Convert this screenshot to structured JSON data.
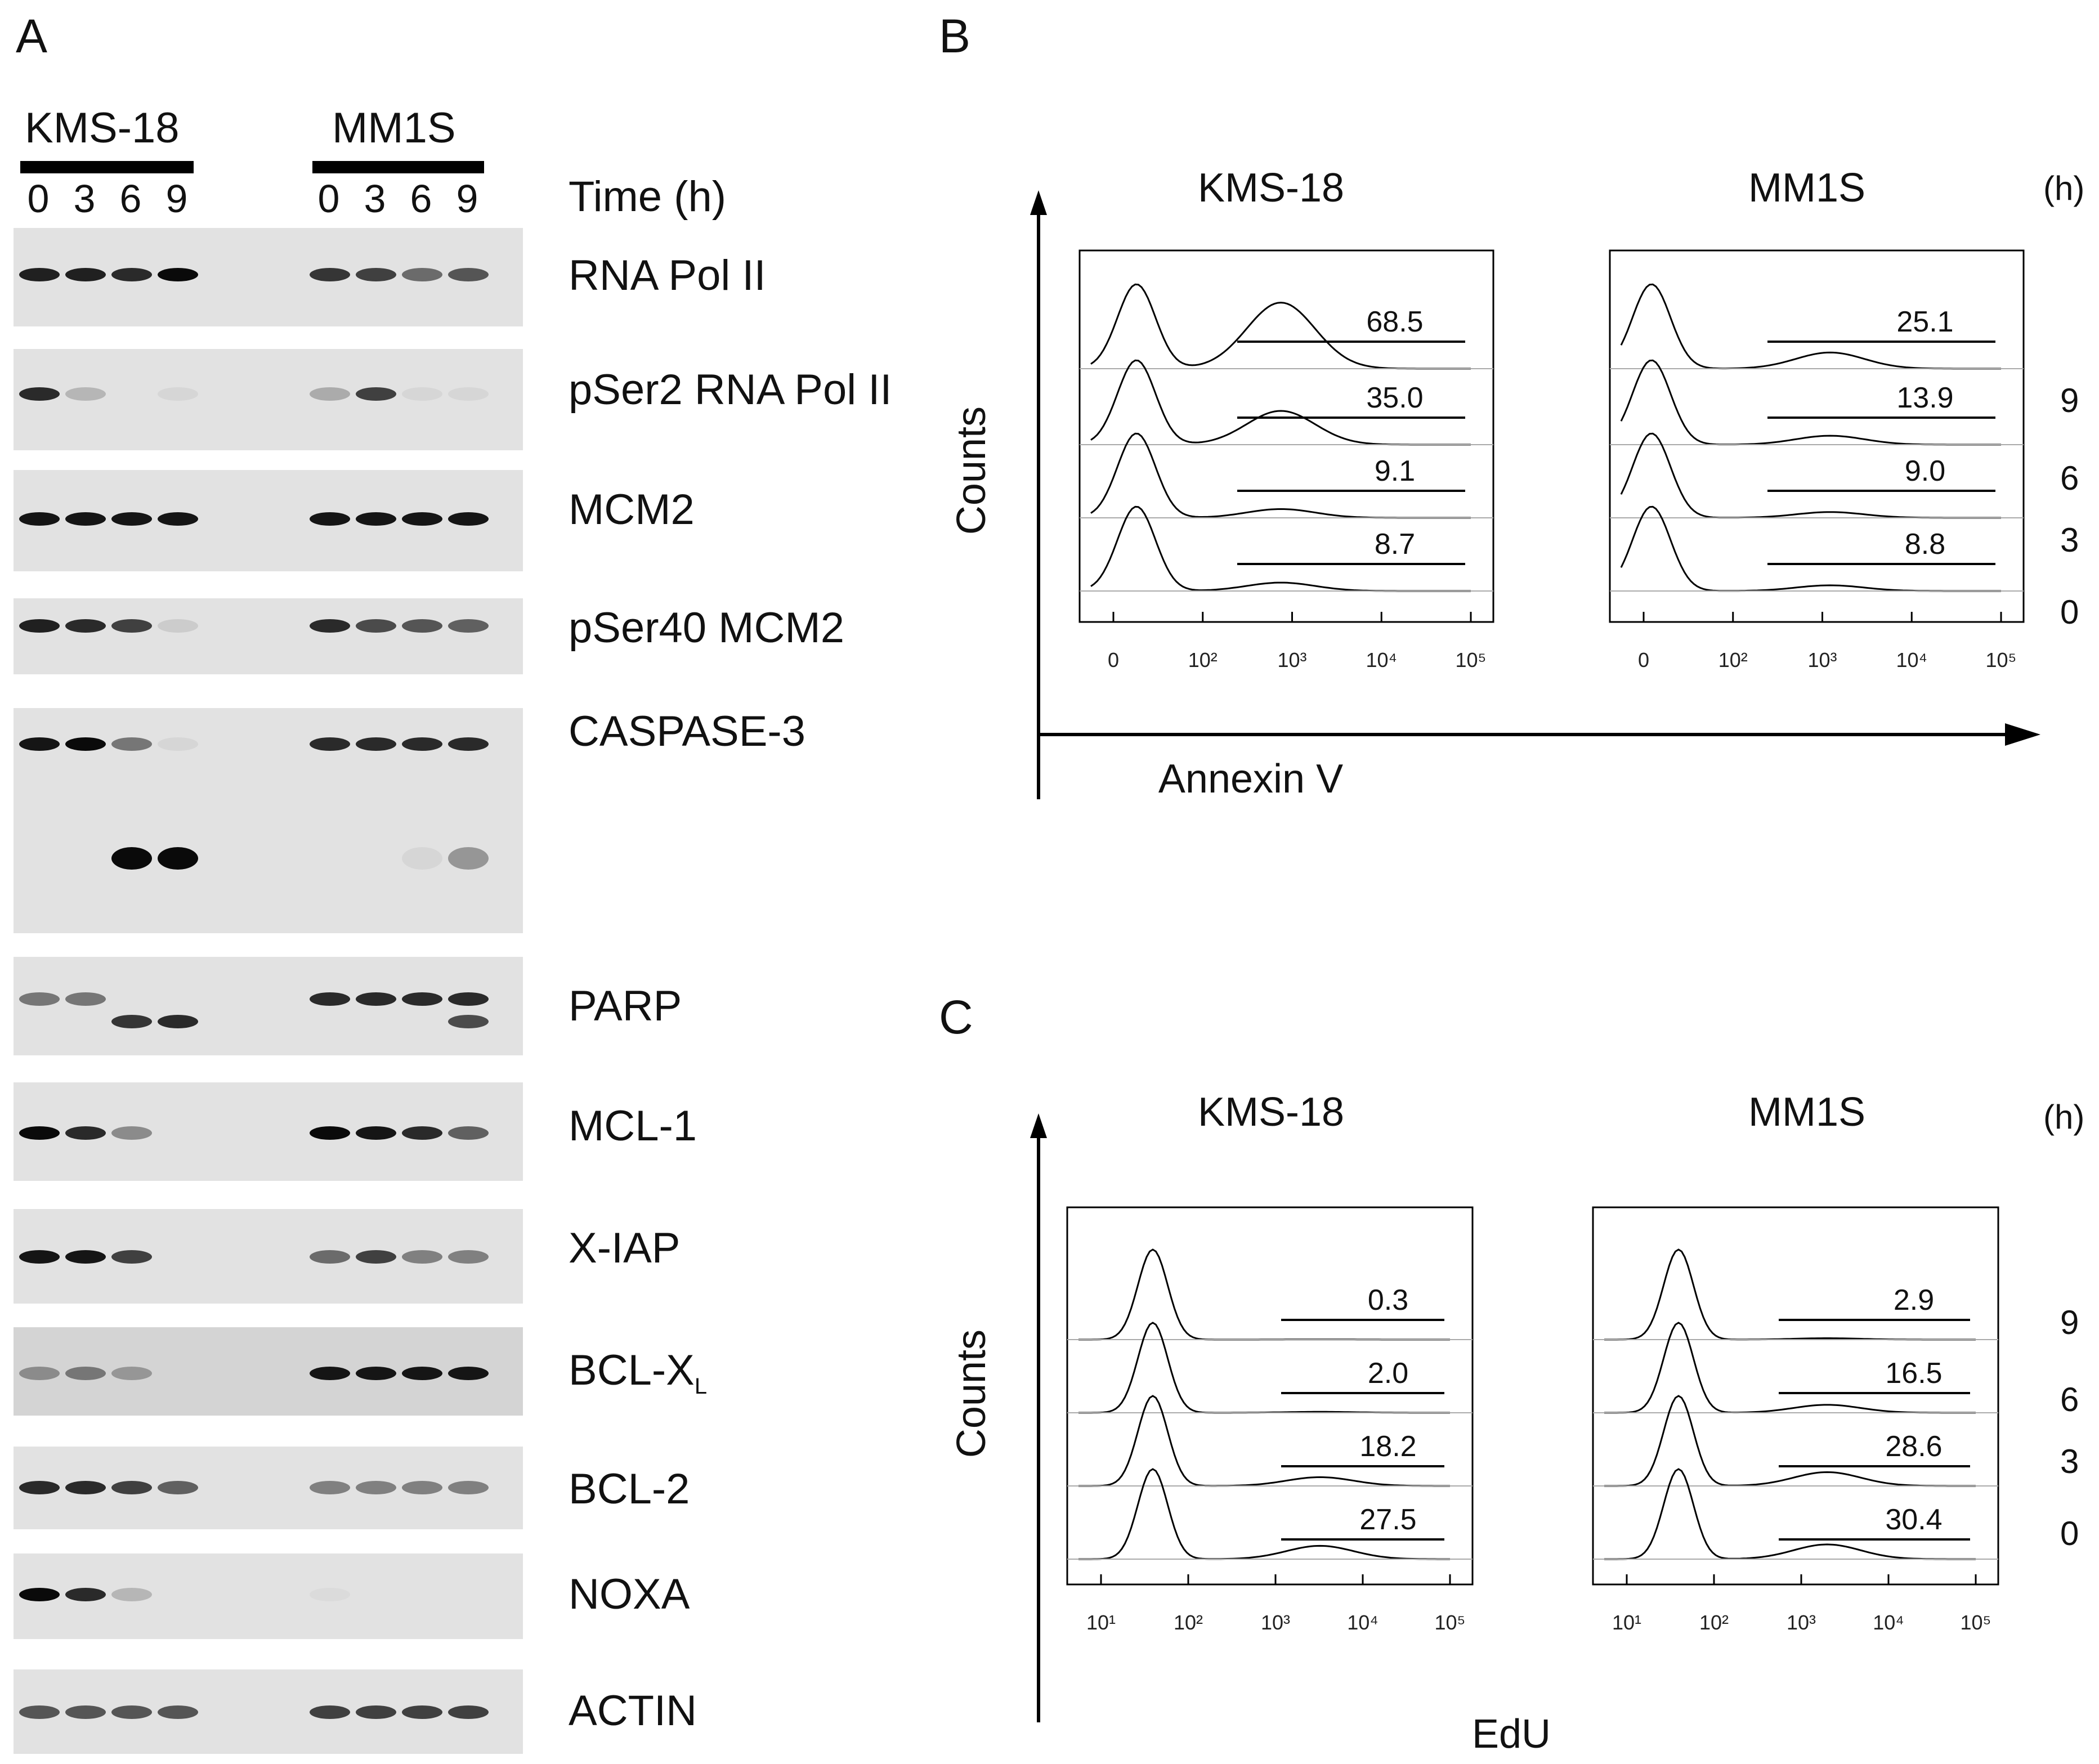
{
  "panels": {
    "a": "A",
    "b": "B",
    "c": "C"
  },
  "western": {
    "cell_lines": [
      "KMS-18",
      "MM1S"
    ],
    "lanes": [
      "0",
      "3",
      "6",
      "9"
    ],
    "time_label": "Time (h)",
    "proteins": [
      {
        "label": "RNA Pol II",
        "sub": "",
        "bands": [
          [
            0.9,
            0.9,
            0.85,
            1.0
          ],
          [
            0.8,
            0.75,
            0.55,
            0.65
          ]
        ]
      },
      {
        "label": "pSer2 RNA Pol II",
        "sub": "",
        "bands": [
          [
            0.85,
            0.2,
            0,
            0.05
          ],
          [
            0.25,
            0.75,
            0.05,
            0.05
          ]
        ]
      },
      {
        "label": "MCM2",
        "sub": "",
        "bands": [
          [
            0.95,
            0.95,
            0.95,
            0.95
          ],
          [
            0.95,
            0.95,
            0.95,
            0.95
          ]
        ]
      },
      {
        "label": "pSer40 MCM2",
        "sub": "",
        "bands": [
          [
            0.9,
            0.85,
            0.75,
            0.1
          ],
          [
            0.85,
            0.7,
            0.65,
            0.6
          ]
        ]
      },
      {
        "label": "CASPASE-3",
        "sub": "",
        "bands": [
          [
            0.95,
            1.0,
            0.5,
            0.05
          ],
          [
            0.85,
            0.85,
            0.85,
            0.85
          ]
        ],
        "cleaved": [
          [
            0,
            0,
            1.0,
            1.0
          ],
          [
            0,
            0,
            0.05,
            0.35
          ]
        ]
      },
      {
        "label": "PARP",
        "sub": "",
        "bands": [
          [
            0.5,
            0.5,
            0,
            0
          ],
          [
            0.85,
            0.85,
            0.85,
            0.85
          ]
        ],
        "cleaved": [
          [
            0,
            0,
            0.8,
            0.85
          ],
          [
            0,
            0,
            0,
            0.7
          ]
        ]
      },
      {
        "label": "MCL-1",
        "sub": "",
        "bands": [
          [
            1.0,
            0.85,
            0.4,
            0
          ],
          [
            1.0,
            0.95,
            0.85,
            0.6
          ]
        ]
      },
      {
        "label": "X-IAP",
        "sub": "",
        "bands": [
          [
            0.95,
            0.95,
            0.75,
            0
          ],
          [
            0.55,
            0.75,
            0.45,
            0.45
          ]
        ]
      },
      {
        "label": "BCL-X",
        "sub": "L",
        "bands": [
          [
            0.4,
            0.5,
            0.35,
            0
          ],
          [
            0.95,
            0.95,
            0.95,
            0.95
          ]
        ]
      },
      {
        "label": "BCL-2",
        "sub": "",
        "bands": [
          [
            0.85,
            0.85,
            0.75,
            0.6
          ],
          [
            0.45,
            0.45,
            0.45,
            0.45
          ]
        ]
      },
      {
        "label": "NOXA",
        "sub": "",
        "bands": [
          [
            1.0,
            0.85,
            0.2,
            0
          ],
          [
            0.03,
            0,
            0,
            0
          ]
        ]
      },
      {
        "label": "ACTIN",
        "sub": "",
        "bands": [
          [
            0.65,
            0.65,
            0.65,
            0.65
          ],
          [
            0.75,
            0.75,
            0.75,
            0.75
          ]
        ]
      }
    ]
  },
  "chart_data": [
    {
      "type": "histogram-overlay",
      "panel": "B",
      "xlabel": "Annexin V",
      "ylabel": "Counts",
      "time_unit": "(h)",
      "timepoints": [
        "9",
        "6",
        "3",
        "0"
      ],
      "xtick_labels": [
        "0",
        "10²",
        "10³",
        "10⁴",
        "10⁵"
      ],
      "series": [
        {
          "name": "KMS-18",
          "values": [
            "68.5",
            "35.0",
            "9.1",
            "8.7"
          ]
        },
        {
          "name": "MM1S",
          "values": [
            "25.1",
            "13.9",
            "9.0",
            "8.8"
          ]
        }
      ]
    },
    {
      "type": "histogram-overlay",
      "panel": "C",
      "xlabel": "EdU",
      "ylabel": "Counts",
      "time_unit": "(h)",
      "timepoints": [
        "9",
        "6",
        "3",
        "0"
      ],
      "xtick_labels": [
        "10¹",
        "10²",
        "10³",
        "10⁴",
        "10⁵"
      ],
      "series": [
        {
          "name": "KMS-18",
          "values": [
            "0.3",
            "2.0",
            "18.2",
            "27.5"
          ]
        },
        {
          "name": "MM1S",
          "values": [
            "2.9",
            "16.5",
            "28.6",
            "30.4"
          ]
        }
      ]
    }
  ]
}
